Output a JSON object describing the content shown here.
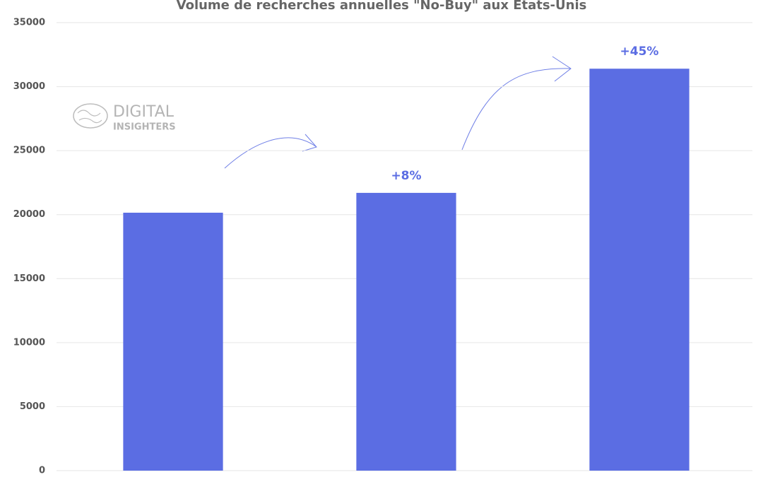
{
  "chart_data": {
    "type": "bar",
    "title": "Volume de recherches annuelles \"No-Buy\" aux États-Unis",
    "categories": [
      null,
      null,
      null
    ],
    "values": [
      20150,
      21700,
      31400
    ],
    "color": "#5b6de3",
    "annotations": [
      "+8%",
      "+45%"
    ],
    "watermark": [
      "DIGITAL",
      "INSIGHTERS"
    ],
    "ylim": [
      0,
      35000
    ],
    "yticks": [
      0,
      5000,
      10000,
      15000,
      20000,
      25000,
      30000,
      35000
    ],
    "grid": true
  }
}
